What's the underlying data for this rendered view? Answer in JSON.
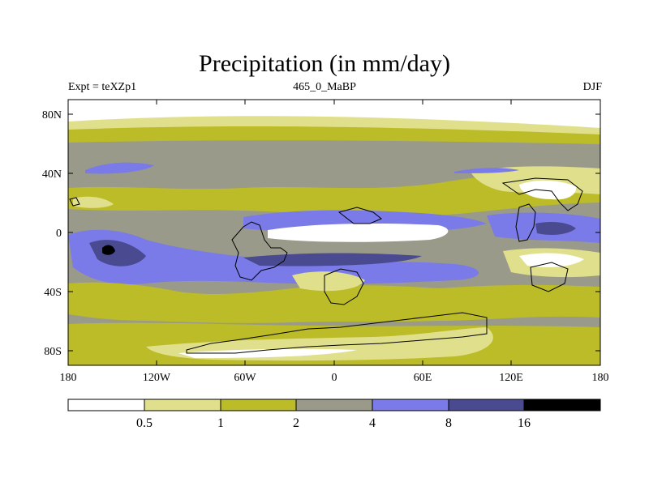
{
  "title": "Precipitation (in mm/day)",
  "subtitle_left": "Expt = teXZp1",
  "subtitle_center": "465_0_MaBP",
  "subtitle_right": "DJF",
  "lat_labels": [
    "80N",
    "40N",
    "0",
    "40S",
    "80S"
  ],
  "lon_labels": [
    "180",
    "120W",
    "60W",
    "0",
    "60E",
    "120E",
    "180"
  ],
  "colorbar": {
    "thresholds": [
      "0.5",
      "1",
      "2",
      "4",
      "8",
      "16"
    ],
    "colors": [
      "#ffffff",
      "#e0e08c",
      "#bcbc28",
      "#9a9a8a",
      "#7a7ae8",
      "#4a4a90",
      "#000000"
    ]
  },
  "colors": {
    "white": "#ffffff",
    "lightyellow": "#e0e08c",
    "olive": "#bcbc28",
    "gray": "#9a9a8a",
    "blue": "#7a7ae8",
    "darkblue": "#4a4a90",
    "black": "#000000"
  }
}
